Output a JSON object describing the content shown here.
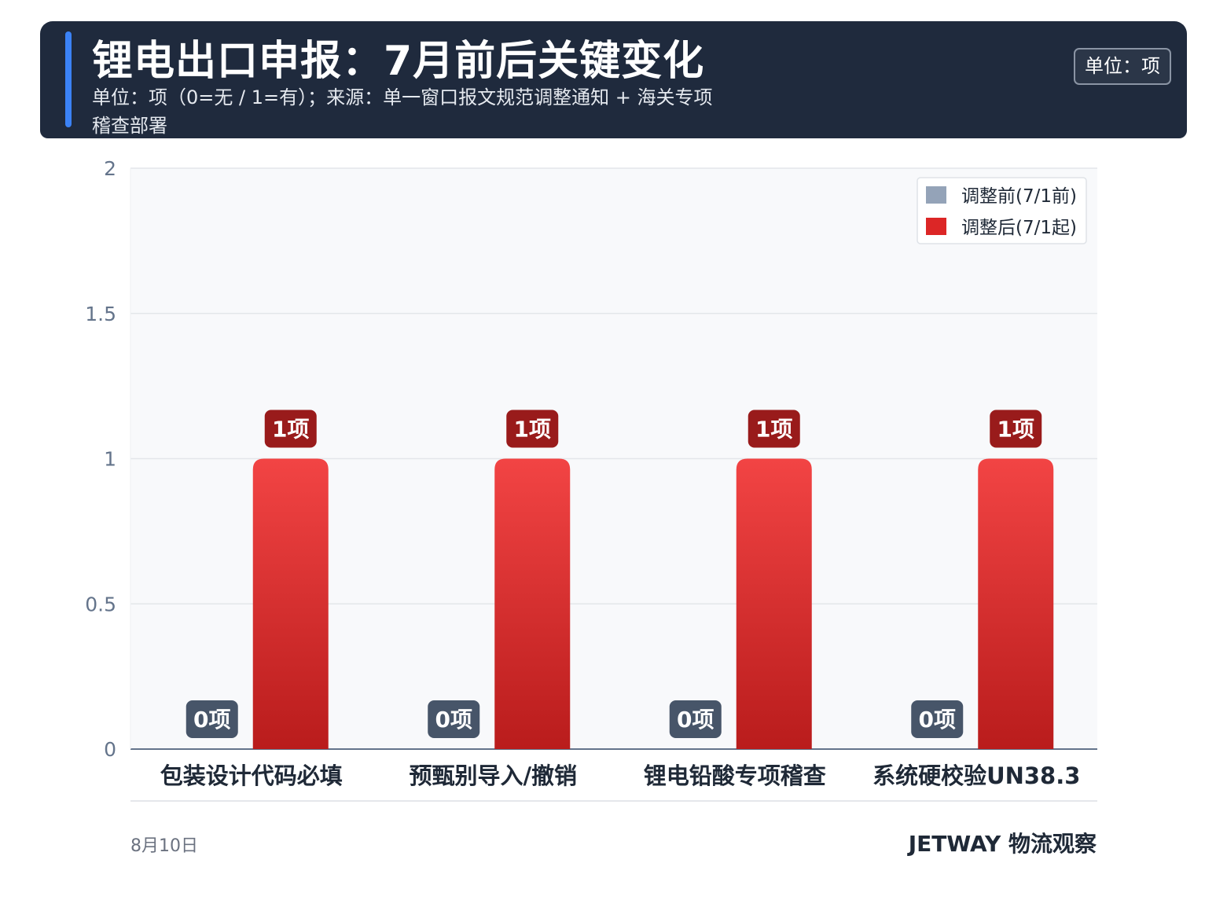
{
  "header": {
    "title": "锂电出口申报：7月前后关键变化",
    "subtitle": "单位：项（0=无 / 1=有）；来源：单一窗口报文规范调整通知 + 海关专项稽查部署",
    "unit_badge": "单位：项"
  },
  "footer": {
    "date": "8月10日",
    "brand": "JETWAY 物流观察"
  },
  "colors": {
    "before": "#475569",
    "before_legend": "#94a3b8",
    "after_top": "#f24444",
    "after_bottom": "#b91c1c",
    "after_label_bg": "#991b1b",
    "header_bg": "#1f2a3d",
    "accent": "#3b82f6"
  },
  "chart_data": {
    "type": "bar",
    "categories": [
      "包装设计代码必填",
      "预甄别导入/撤销",
      "锂电铅酸专项稽查",
      "系统硬校验UN38.3"
    ],
    "series": [
      {
        "name": "调整前(7/1前)",
        "values": [
          0,
          0,
          0,
          0
        ],
        "labels": [
          "0项",
          "0项",
          "0项",
          "0项"
        ]
      },
      {
        "name": "调整后(7/1起)",
        "values": [
          1,
          1,
          1,
          1
        ],
        "labels": [
          "1项",
          "1项",
          "1项",
          "1项"
        ]
      }
    ],
    "ylim": [
      0,
      2
    ],
    "yticks": [
      "0",
      "0.5",
      "1",
      "1.5",
      "2"
    ],
    "ytick_values": [
      0,
      0.5,
      1,
      1.5,
      2
    ],
    "grid": true,
    "legend": "top-right"
  }
}
